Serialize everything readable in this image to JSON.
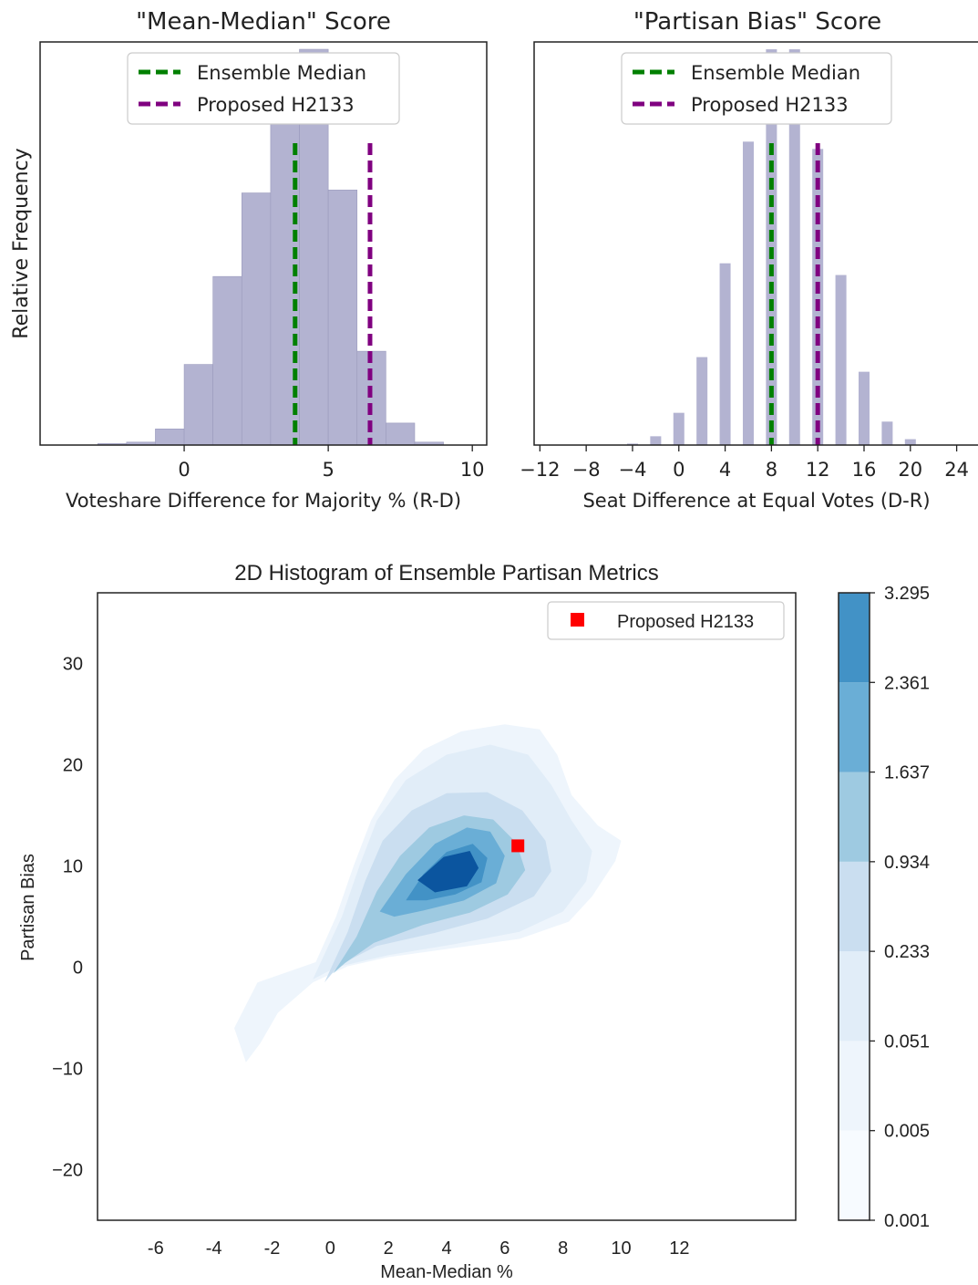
{
  "chart_data": [
    {
      "type": "bar",
      "title": "\"Mean-Median\" Score",
      "xlabel": "Voteshare Difference for Majority % (R-D)",
      "ylabel": "Relative Frequency",
      "xlim": [
        -5,
        10.5
      ],
      "ylim": [
        0,
        0.275
      ],
      "xticks": [
        "0",
        "5",
        "10"
      ],
      "xtick_values": [
        0,
        5,
        10
      ],
      "bin_width": 1,
      "bins": [
        {
          "x0": -3,
          "y": 0.001
        },
        {
          "x0": -2,
          "y": 0.002
        },
        {
          "x0": -1,
          "y": 0.011
        },
        {
          "x0": 0,
          "y": 0.055
        },
        {
          "x0": 1,
          "y": 0.115
        },
        {
          "x0": 2,
          "y": 0.172
        },
        {
          "x0": 3,
          "y": 0.244
        },
        {
          "x0": 4,
          "y": 0.27
        },
        {
          "x0": 5,
          "y": 0.174
        },
        {
          "x0": 6,
          "y": 0.064
        },
        {
          "x0": 7,
          "y": 0.015
        },
        {
          "x0": 8,
          "y": 0.002
        }
      ],
      "bar_color": "#b3b3d1",
      "vlines": [
        {
          "name": "Ensemble Median",
          "x": 3.85,
          "color": "#008000"
        },
        {
          "name": "Proposed H2133",
          "x": 6.45,
          "color": "#800080"
        }
      ],
      "legend_position": "top-center",
      "grid": false
    },
    {
      "type": "bar",
      "title": "\"Partisan Bias\" Score",
      "xlabel": "Seat Difference at Equal Votes (D-R)",
      "xlim": [
        -12.5,
        26
      ],
      "ylim": [
        0,
        0.275
      ],
      "xticks": [
        "−12",
        "−8",
        "−4",
        "0",
        "4",
        "8",
        "12",
        "16",
        "20",
        "24"
      ],
      "xtick_values": [
        -12,
        -8,
        -4,
        0,
        4,
        8,
        12,
        16,
        20,
        24
      ],
      "bars": [
        {
          "x": -4,
          "y": 0.001
        },
        {
          "x": -2,
          "y": 0.006
        },
        {
          "x": 0,
          "y": 0.022
        },
        {
          "x": 2,
          "y": 0.06
        },
        {
          "x": 4,
          "y": 0.124
        },
        {
          "x": 6,
          "y": 0.207
        },
        {
          "x": 8,
          "y": 0.27
        },
        {
          "x": 10,
          "y": 0.27
        },
        {
          "x": 12,
          "y": 0.202
        },
        {
          "x": 14,
          "y": 0.116
        },
        {
          "x": 16,
          "y": 0.05
        },
        {
          "x": 18,
          "y": 0.016
        },
        {
          "x": 20,
          "y": 0.004
        }
      ],
      "bar_color": "#b3b3d1",
      "vlines": [
        {
          "name": "Ensemble Median",
          "x": 8,
          "color": "#008000"
        },
        {
          "name": "Proposed H2133",
          "x": 12,
          "color": "#800080"
        }
      ],
      "legend_position": "top-center",
      "grid": false
    },
    {
      "type": "heatmap",
      "title": "2D Histogram of Ensemble Partisan Metrics",
      "xlabel": "Mean-Median %",
      "ylabel": "Partisan Bias",
      "xlim": [
        -8,
        16
      ],
      "ylim": [
        -25,
        37
      ],
      "xticks": [
        "-6",
        "-4",
        "-2",
        "0",
        "2",
        "4",
        "6",
        "8",
        "10",
        "12"
      ],
      "xtick_values": [
        -6,
        -4,
        -2,
        0,
        2,
        4,
        6,
        8,
        10,
        12
      ],
      "yticks": [
        "−20",
        "−10",
        "0",
        "10",
        "20",
        "30"
      ],
      "ytick_values": [
        -20,
        -10,
        0,
        10,
        20,
        30
      ],
      "contour_levels": [
        "0.001",
        "0.005",
        "0.051",
        "0.233",
        "0.934",
        "1.637",
        "2.361",
        "3.295"
      ],
      "level_colors": [
        "#f7fbff",
        "#eef5fc",
        "#e1edf8",
        "#cadef0",
        "#9ecae1",
        "#6aaed6",
        "#4292c6",
        "#0b559f"
      ],
      "density_regions": [
        {
          "level": 1,
          "polygon": [
            [
              -2.9,
              -9.4
            ],
            [
              -3.3,
              -6
            ],
            [
              -2.5,
              -1.5
            ],
            [
              -0.5,
              0.5
            ],
            [
              0.2,
              5
            ],
            [
              0.8,
              10
            ],
            [
              1.4,
              14.5
            ],
            [
              2.2,
              18.5
            ],
            [
              3.2,
              21.5
            ],
            [
              4.5,
              23.3
            ],
            [
              6,
              24
            ],
            [
              7.2,
              23.5
            ],
            [
              7.8,
              21
            ],
            [
              8.3,
              17
            ],
            [
              9.2,
              14
            ],
            [
              10,
              12.5
            ],
            [
              9.8,
              10.5
            ],
            [
              9,
              7
            ],
            [
              8.2,
              4.5
            ],
            [
              6.5,
              2.8
            ],
            [
              4,
              1.8
            ],
            [
              2,
              1
            ],
            [
              0.6,
              0.1
            ],
            [
              -0.6,
              -1.5
            ],
            [
              -1.8,
              -4.5
            ],
            [
              -2.4,
              -7.5
            ]
          ]
        },
        {
          "level": 2,
          "polygon": [
            [
              -0.6,
              -1.2
            ],
            [
              0.4,
              5
            ],
            [
              1,
              10
            ],
            [
              1.6,
              14.5
            ],
            [
              2.6,
              18.5
            ],
            [
              4,
              21
            ],
            [
              5.5,
              22
            ],
            [
              6.8,
              21
            ],
            [
              7.6,
              18
            ],
            [
              8.3,
              14.5
            ],
            [
              9,
              11.5
            ],
            [
              8.8,
              8.5
            ],
            [
              8,
              5.5
            ],
            [
              6.5,
              3.5
            ],
            [
              4.3,
              2.3
            ],
            [
              2,
              1.2
            ],
            [
              0.2,
              0
            ]
          ]
        },
        {
          "level": 3,
          "polygon": [
            [
              -0.2,
              -1.5
            ],
            [
              0.6,
              3.5
            ],
            [
              1.2,
              8.5
            ],
            [
              1.8,
              12.5
            ],
            [
              2.8,
              15.5
            ],
            [
              4,
              17.2
            ],
            [
              5.4,
              17.3
            ],
            [
              6.6,
              15.5
            ],
            [
              7.4,
              12.5
            ],
            [
              7.6,
              9.5
            ],
            [
              7,
              7
            ],
            [
              5.4,
              4.8
            ],
            [
              3.6,
              3.4
            ],
            [
              1.6,
              2.1
            ],
            [
              0.3,
              0.2
            ]
          ]
        },
        {
          "level": 4,
          "polygon": [
            [
              0.1,
              -0.6
            ],
            [
              0.9,
              3
            ],
            [
              1.6,
              7.5
            ],
            [
              2.4,
              11
            ],
            [
              3.4,
              13.8
            ],
            [
              4.6,
              15
            ],
            [
              5.6,
              14.6
            ],
            [
              6.4,
              12.3
            ],
            [
              6.7,
              9.6
            ],
            [
              6.1,
              7.2
            ],
            [
              4.8,
              5.4
            ],
            [
              3.2,
              4.2
            ],
            [
              1.5,
              2.4
            ],
            [
              0.5,
              0.4
            ]
          ]
        },
        {
          "level": 5,
          "polygon": [
            [
              1.7,
              5.5
            ],
            [
              2.6,
              9.2
            ],
            [
              3.6,
              12.2
            ],
            [
              4.7,
              13.8
            ],
            [
              5.5,
              13.4
            ],
            [
              6,
              11
            ],
            [
              5.7,
              8.3
            ],
            [
              4.6,
              6.6
            ],
            [
              3.2,
              5.6
            ],
            [
              2.2,
              5
            ]
          ]
        },
        {
          "level": 6,
          "polygon": [
            [
              2.6,
              6.6
            ],
            [
              3.2,
              9.2
            ],
            [
              4,
              11.4
            ],
            [
              4.9,
              12.2
            ],
            [
              5.4,
              10.8
            ],
            [
              5.2,
              8.4
            ],
            [
              4.3,
              7.2
            ],
            [
              3.3,
              6.6
            ]
          ]
        },
        {
          "level": 7,
          "polygon": [
            [
              3,
              8.6
            ],
            [
              3.9,
              10.9
            ],
            [
              4.8,
              11.5
            ],
            [
              5.1,
              9.8
            ],
            [
              4.7,
              8
            ],
            [
              3.6,
              7.4
            ]
          ]
        }
      ],
      "points": [
        {
          "name": "Proposed H2133",
          "x": 6.45,
          "y": 12,
          "color": "#ff0000",
          "marker": "square"
        }
      ],
      "colorbar": true,
      "legend_position": "top-right",
      "grid": false
    }
  ]
}
